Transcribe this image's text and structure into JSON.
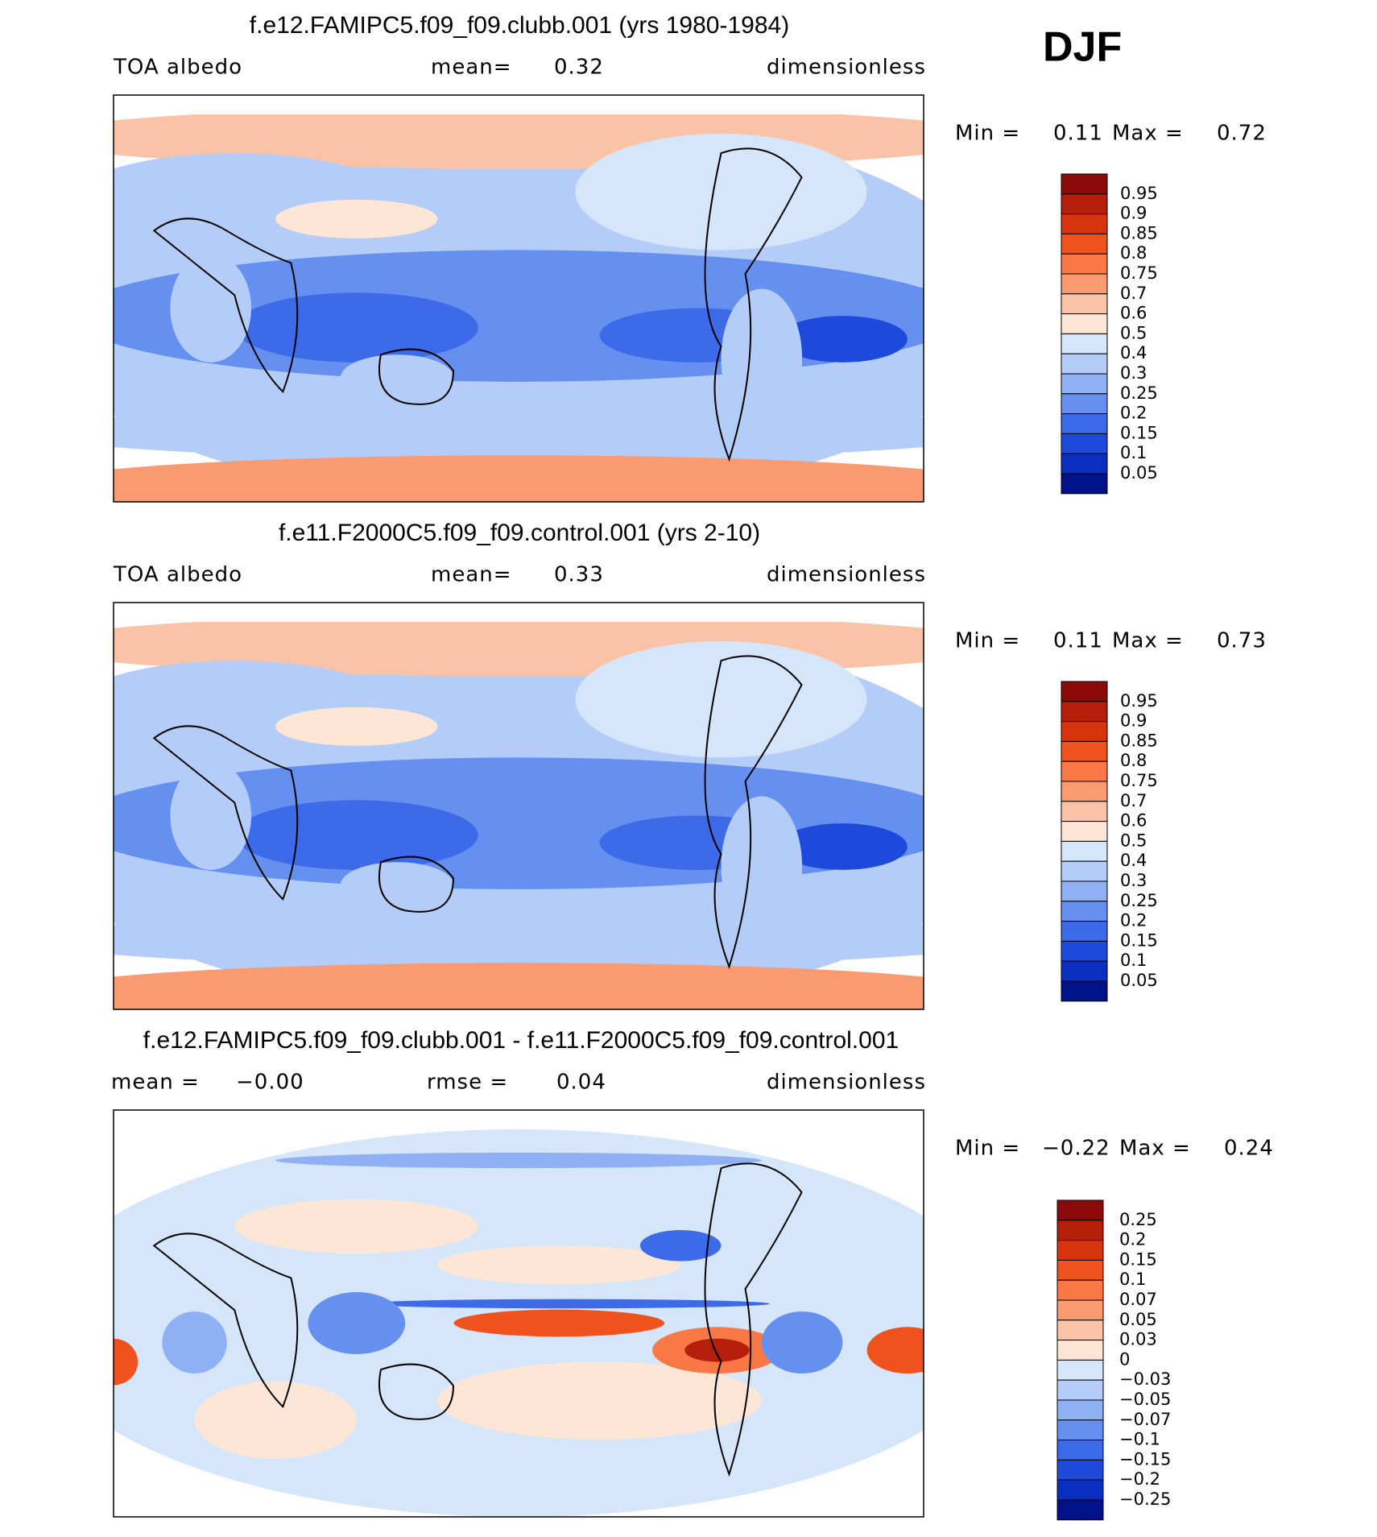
{
  "season": "DJF",
  "panels": [
    {
      "title": "f.e12.FAMIPC5.f09_f09.clubb.001 (yrs 1980-1984)",
      "labels": [
        "TOA albedo",
        "mean=",
        "0.32",
        "dimensionless"
      ],
      "range": [
        "Min =",
        "0.11",
        "Max =",
        "0.72"
      ],
      "colorbar": [
        "0.95",
        "0.9",
        "0.85",
        "0.8",
        "0.75",
        "0.7",
        "0.6",
        "0.5",
        "0.4",
        "0.3",
        "0.25",
        "0.2",
        "0.15",
        "0.1",
        "0.05"
      ]
    },
    {
      "title": "f.e11.F2000C5.f09_f09.control.001 (yrs 2-10)",
      "labels": [
        "TOA albedo",
        "mean=",
        "0.33",
        "dimensionless"
      ],
      "range": [
        "Min =",
        "0.11",
        "Max =",
        "0.73"
      ],
      "colorbar": [
        "0.95",
        "0.9",
        "0.85",
        "0.8",
        "0.75",
        "0.7",
        "0.6",
        "0.5",
        "0.4",
        "0.3",
        "0.25",
        "0.2",
        "0.15",
        "0.1",
        "0.05"
      ]
    },
    {
      "title": "f.e12.FAMIPC5.f09_f09.clubb.001 - f.e11.F2000C5.f09_f09.control.001",
      "labels": [
        "mean =",
        "−0.00",
        "rmse =",
        "0.04",
        "dimensionless"
      ],
      "range": [
        "Min =",
        "−0.22",
        "Max =",
        "0.24"
      ],
      "colorbar": [
        "0.25",
        "0.2",
        "0.15",
        "0.1",
        "0.07",
        "0.05",
        "0.03",
        "0",
        "−0.03",
        "−0.05",
        "−0.07",
        "−0.1",
        "−0.15",
        "−0.2",
        "−0.25"
      ]
    }
  ]
}
